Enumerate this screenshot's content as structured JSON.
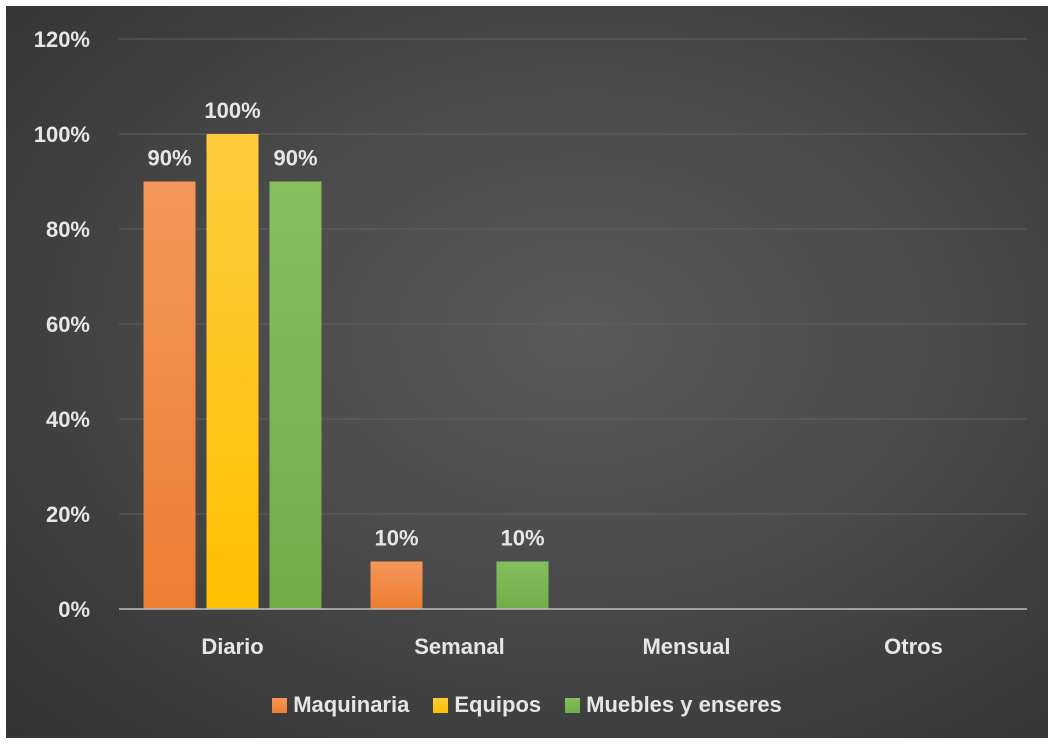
{
  "chart_data": {
    "type": "bar",
    "title": "",
    "xlabel": "",
    "ylabel": "",
    "categories": [
      "Diario",
      "Semanal",
      "Mensual",
      "Otros"
    ],
    "series": [
      {
        "name": "Maquinaria",
        "values": [
          90,
          10,
          0,
          0
        ],
        "labels": [
          "90%",
          "10%",
          "",
          ""
        ],
        "color": "#ED7D31",
        "color_light": "#F5975A"
      },
      {
        "name": "Equipos",
        "values": [
          100,
          0,
          0,
          0
        ],
        "labels": [
          "100%",
          "",
          "",
          ""
        ],
        "color": "#FFC000",
        "color_light": "#FFCB3D"
      },
      {
        "name": "Muebles y enseres",
        "values": [
          90,
          10,
          0,
          0
        ],
        "labels": [
          "90%",
          "10%",
          "",
          ""
        ],
        "color": "#70AD47",
        "color_light": "#85BF5E"
      }
    ],
    "ylim": [
      0,
      120
    ],
    "yticks": [
      0,
      20,
      40,
      60,
      80,
      100,
      120
    ],
    "ytick_labels": [
      "0%",
      "20%",
      "40%",
      "60%",
      "80%",
      "100%",
      "120%"
    ],
    "grid": true,
    "legend_position": "bottom",
    "colors": {
      "gridline": "#5f5f5f",
      "axis": "#bfbfbf",
      "text": "#e6e6e6"
    }
  }
}
